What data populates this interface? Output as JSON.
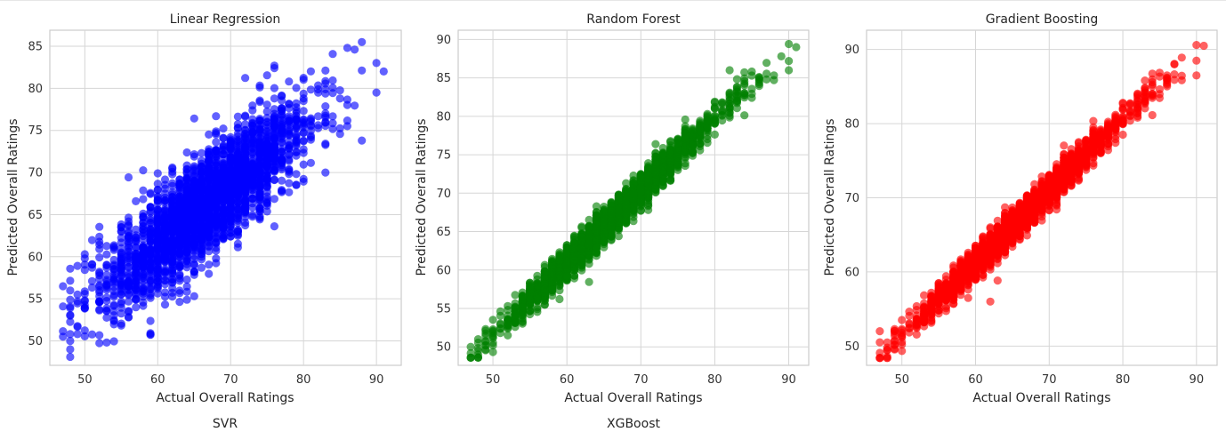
{
  "chart_data": [
    {
      "type": "scatter",
      "title": "Linear Regression",
      "xlabel": "Actual Overall Ratings",
      "ylabel": "Predicted Overall Ratings",
      "color": "#0000ff",
      "xlim": [
        45.2,
        93.4
      ],
      "ylim": [
        47.1,
        86.9
      ],
      "xticks": [
        50,
        60,
        70,
        80,
        90
      ],
      "yticks": [
        50,
        55,
        60,
        65,
        70,
        75,
        80,
        85
      ],
      "grid": true,
      "trend": {
        "slope": 0.68,
        "intercept": 20.8,
        "spread": 3.0
      },
      "points": [
        [
          47,
          50.5
        ],
        [
          47,
          56.5
        ],
        [
          48,
          49
        ],
        [
          48,
          53
        ],
        [
          49,
          55.5
        ],
        [
          50,
          59.8
        ],
        [
          53,
          49.8
        ],
        [
          56,
          52.8
        ],
        [
          86,
          84.8
        ],
        [
          87,
          84.6
        ],
        [
          88,
          85.5
        ],
        [
          90,
          83.0
        ],
        [
          91,
          82.0
        ],
        [
          90,
          79.5
        ],
        [
          83,
          70.0
        ]
      ]
    },
    {
      "type": "scatter",
      "title": "Random Forest",
      "xlabel": "Actual Overall Ratings",
      "ylabel": "Predicted Overall Ratings",
      "color": "#008000",
      "xlim": [
        45.3,
        92.7
      ],
      "ylim": [
        47.6,
        91.2
      ],
      "xticks": [
        50,
        60,
        70,
        80,
        90
      ],
      "yticks": [
        50,
        55,
        60,
        65,
        70,
        75,
        80,
        85,
        90
      ],
      "grid": true,
      "trend": {
        "slope": 0.94,
        "intercept": 4.5,
        "spread": 1.1
      },
      "points": [
        [
          47,
          50
        ],
        [
          48,
          49
        ],
        [
          48,
          51
        ],
        [
          50,
          52
        ],
        [
          89,
          87.8
        ],
        [
          90,
          87.2
        ],
        [
          91,
          89
        ],
        [
          90,
          86
        ],
        [
          82,
          86
        ]
      ]
    },
    {
      "type": "scatter",
      "title": "Gradient Boosting",
      "xlabel": "Actual Overall Ratings",
      "ylabel": "Predicted Overall Ratings",
      "color": "#ff0000",
      "xlim": [
        45.2,
        92.8
      ],
      "ylim": [
        47.4,
        92.6
      ],
      "xticks": [
        50,
        60,
        70,
        80,
        90
      ],
      "yticks": [
        50,
        60,
        70,
        80,
        90
      ],
      "grid": true,
      "trend": {
        "slope": 0.97,
        "intercept": 3.0,
        "spread": 1.1
      },
      "points": [
        [
          47,
          52
        ],
        [
          47,
          50.5
        ],
        [
          48,
          49.5
        ],
        [
          49,
          52
        ],
        [
          90,
          88.5
        ],
        [
          90,
          86.5
        ],
        [
          91,
          90.5
        ],
        [
          86,
          86.5
        ],
        [
          87,
          88
        ],
        [
          62,
          56
        ]
      ]
    }
  ],
  "lower_titles": [
    "SVR",
    "XGBoost"
  ]
}
